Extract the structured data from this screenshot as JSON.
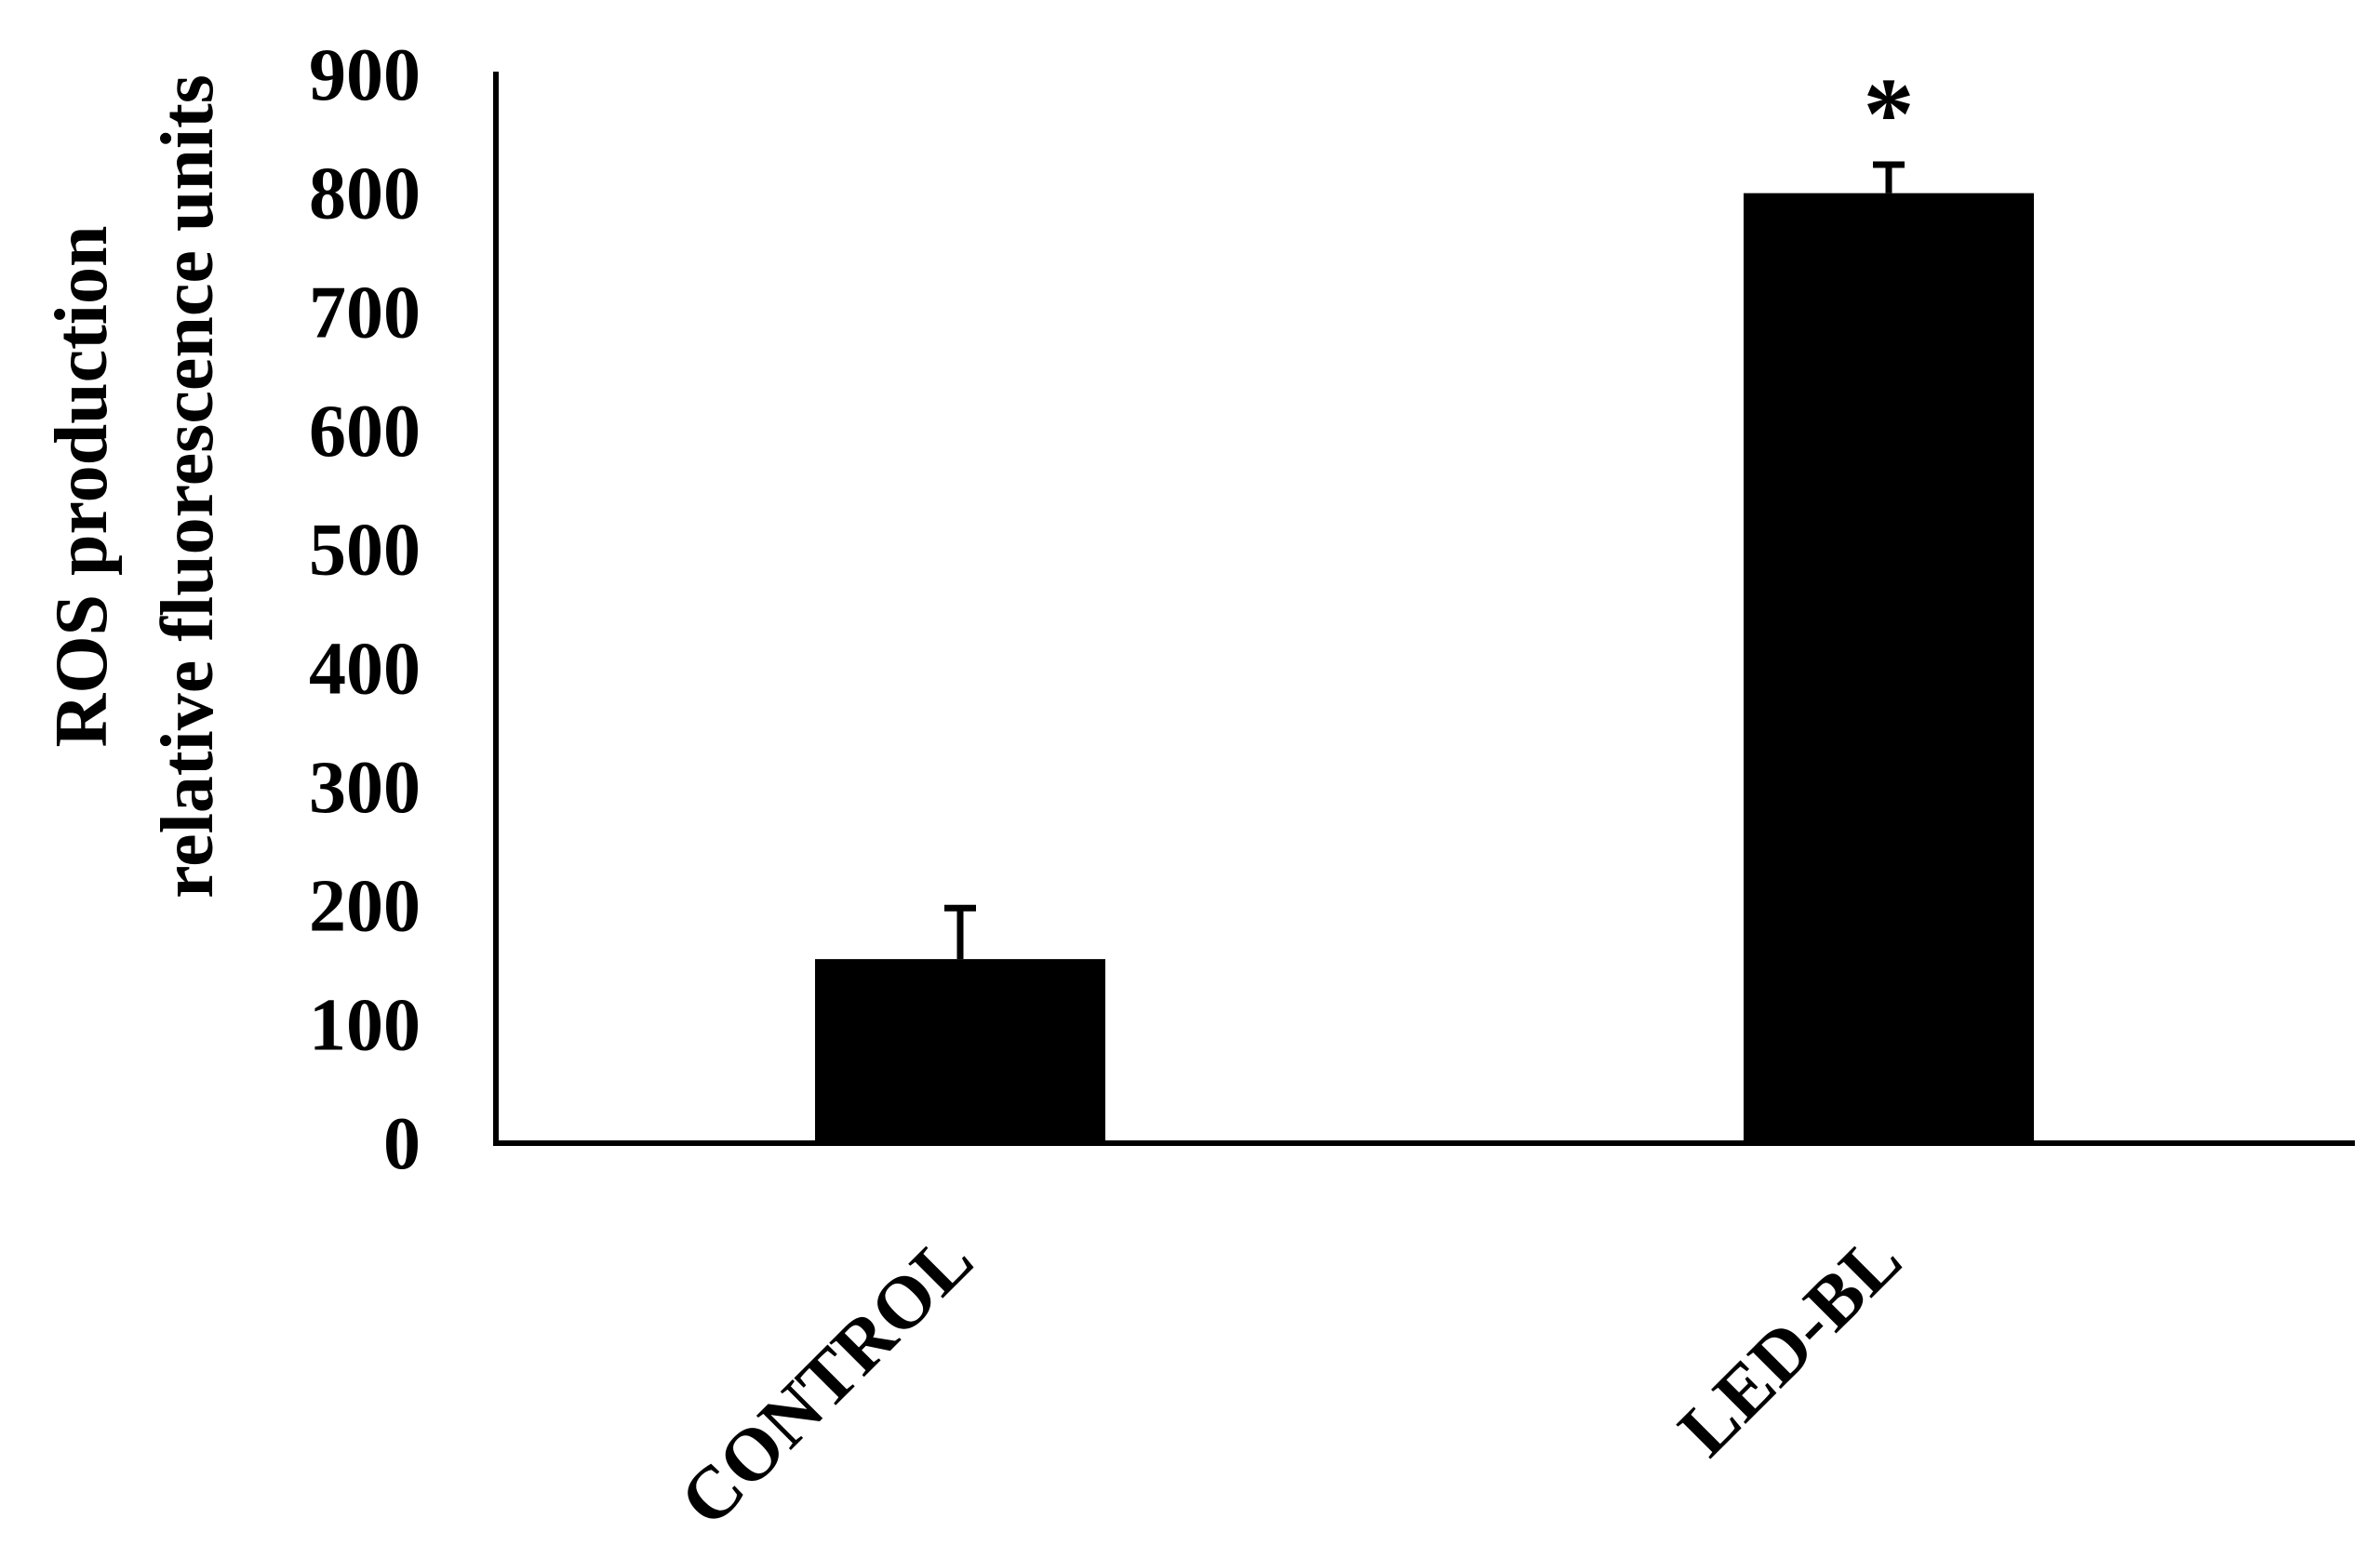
{
  "chart_data": {
    "type": "bar",
    "categories": [
      "CONTROL",
      "LED-BL"
    ],
    "values": [
      155,
      800
    ],
    "errors": [
      43,
      24
    ],
    "ylabel_lines": [
      "ROS production",
      "relative fluorescence units"
    ],
    "yticks": [
      "0",
      "100",
      "200",
      "300",
      "400",
      "500",
      "600",
      "700",
      "800",
      "900"
    ],
    "ylim": [
      0,
      900
    ],
    "annotations": [
      {
        "category": "LED-BL",
        "text": "*"
      }
    ],
    "grid": false,
    "legend": "none",
    "colors": {
      "bar": "#000000",
      "axis": "#000000",
      "background": "#ffffff"
    }
  }
}
